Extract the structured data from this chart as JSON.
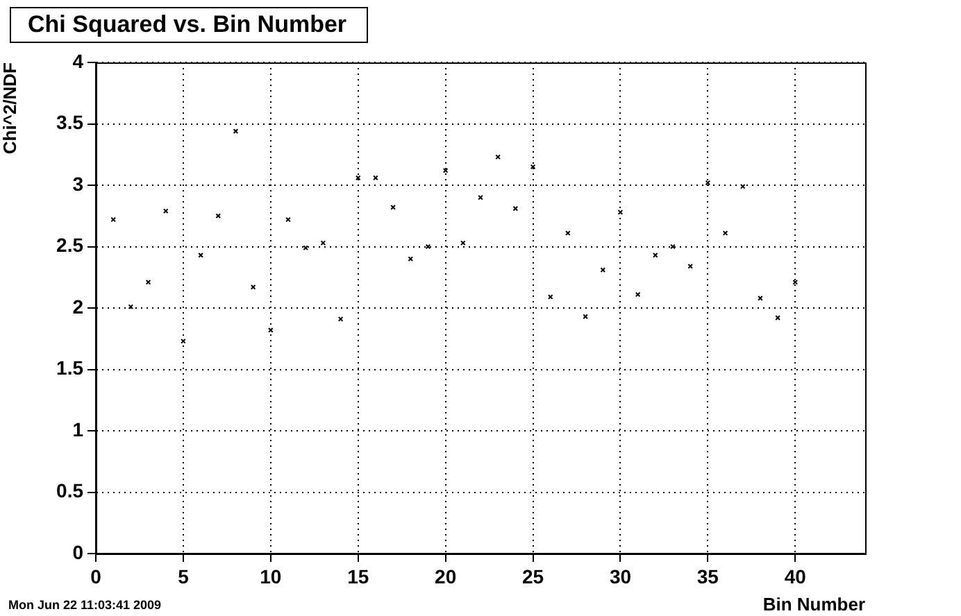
{
  "chart_data": {
    "type": "scatter",
    "title": "Chi Squared vs. Bin Number",
    "xlabel": "Bin Number",
    "ylabel": "Chi^2/NDF",
    "annotations": [
      "Mon Jun 22 11:03:41 2009"
    ],
    "x": [
      1,
      2,
      3,
      4,
      5,
      6,
      7,
      8,
      9,
      10,
      11,
      12,
      13,
      14,
      15,
      16,
      17,
      18,
      19,
      20,
      21,
      22,
      23,
      24,
      25,
      26,
      27,
      28,
      29,
      30,
      31,
      32,
      33,
      34,
      35,
      36,
      37,
      38,
      39,
      40
    ],
    "series": [
      {
        "color": "#000000",
        "values": [
          2.72,
          2.01,
          2.21,
          2.79,
          1.73,
          2.43,
          2.75,
          3.44,
          2.17,
          1.82,
          2.72,
          2.49,
          2.53,
          1.91,
          3.06,
          3.06,
          2.82,
          2.4,
          2.5,
          3.12,
          2.53,
          2.9,
          3.23,
          2.81,
          3.15,
          2.09,
          2.61,
          1.93,
          2.31,
          2.78,
          2.11,
          2.43,
          2.5,
          2.34,
          3.02,
          2.61,
          2.99,
          2.08,
          1.92,
          2.21
        ]
      }
    ],
    "xlim": [
      0,
      44
    ],
    "xticks": [
      0,
      5,
      10,
      15,
      20,
      25,
      30,
      35,
      40
    ],
    "ylim": [
      0,
      4
    ],
    "yticks": [
      0,
      0.5,
      1,
      1.5,
      2,
      2.5,
      3,
      3.5,
      4
    ],
    "grid": true,
    "legend": false,
    "marker": "cross"
  }
}
